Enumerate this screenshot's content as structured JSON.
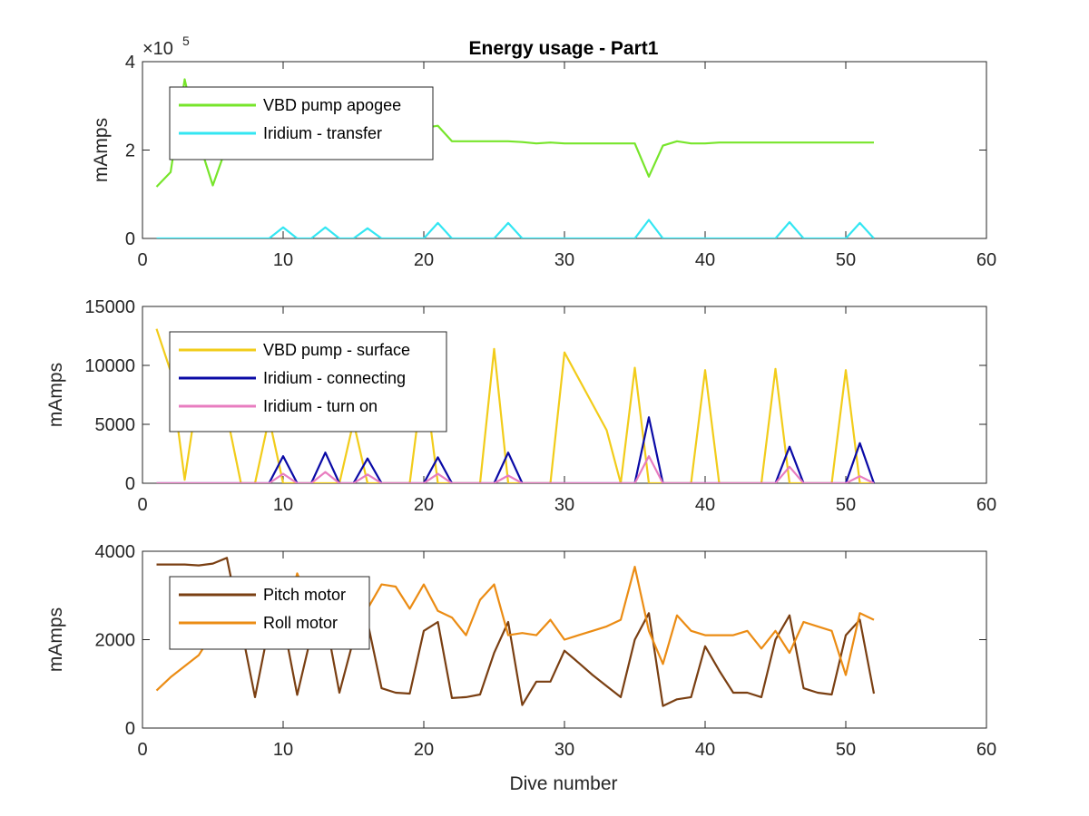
{
  "title": "Energy usage - Part1",
  "x_label": "Dive number",
  "chart_data": [
    {
      "type": "line",
      "title": "Energy usage - Part1",
      "xlabel": "",
      "ylabel": "mAmps",
      "xlim": [
        0,
        60
      ],
      "ylim": [
        0,
        4
      ],
      "y_multiplier_prefix": "×10",
      "y_multiplier_exp": "5",
      "xticks": [
        "0",
        "10",
        "20",
        "30",
        "40",
        "50",
        "60"
      ],
      "yticks": [
        "0",
        "2",
        "4"
      ],
      "legend_location": "top-left",
      "grid": false,
      "series": [
        {
          "name": "VBD pump apogee",
          "color": "#77E52B",
          "x": [
            1,
            2,
            3,
            4,
            5,
            6,
            7,
            8,
            9,
            10,
            11,
            12,
            13,
            14,
            15,
            16,
            17,
            18,
            19,
            20,
            21,
            22,
            23,
            24,
            25,
            26,
            27,
            28,
            29,
            30,
            31,
            32,
            33,
            34,
            35,
            36,
            37,
            38,
            39,
            40,
            41,
            42,
            43,
            44,
            45,
            46,
            47,
            48,
            49,
            50,
            51,
            52
          ],
          "y": [
            1.17,
            1.5,
            3.6,
            2.2,
            1.2,
            2.1,
            2.3,
            2.3,
            2.35,
            2.35,
            2.35,
            2.35,
            2.35,
            2.35,
            2.35,
            2.35,
            2.35,
            2.4,
            2.45,
            2.5,
            2.55,
            2.2,
            2.2,
            2.2,
            2.2,
            2.2,
            2.18,
            2.15,
            2.17,
            2.15,
            2.15,
            2.15,
            2.15,
            2.15,
            2.15,
            1.4,
            2.1,
            2.2,
            2.15,
            2.15,
            2.17,
            2.17,
            2.17,
            2.17,
            2.17,
            2.17,
            2.17,
            2.17,
            2.17,
            2.17,
            2.17,
            2.17
          ]
        },
        {
          "name": "Iridium - transfer",
          "color": "#33E6F2",
          "x": [
            1,
            2,
            3,
            4,
            5,
            6,
            7,
            8,
            9,
            10,
            11,
            12,
            13,
            14,
            15,
            16,
            17,
            18,
            19,
            20,
            21,
            22,
            23,
            24,
            25,
            26,
            27,
            28,
            29,
            30,
            31,
            32,
            33,
            34,
            35,
            36,
            37,
            38,
            39,
            40,
            41,
            42,
            43,
            44,
            45,
            46,
            47,
            48,
            49,
            50,
            51,
            52
          ],
          "y": [
            0,
            0,
            0,
            0,
            0,
            0,
            0,
            0,
            0,
            0.25,
            0,
            0,
            0.25,
            0,
            0,
            0.23,
            0,
            0,
            0,
            0,
            0.35,
            0,
            0,
            0,
            0,
            0.35,
            0,
            0,
            0,
            0,
            0,
            0,
            0,
            0,
            0,
            0.42,
            0,
            0,
            0,
            0,
            0,
            0,
            0,
            0,
            0,
            0.37,
            0,
            0,
            0,
            0,
            0.35,
            0
          ]
        }
      ]
    },
    {
      "type": "line",
      "title": "",
      "xlabel": "",
      "ylabel": "mAmps",
      "xlim": [
        0,
        60
      ],
      "ylim": [
        0,
        15000
      ],
      "xticks": [
        "0",
        "10",
        "20",
        "30",
        "40",
        "50",
        "60"
      ],
      "yticks": [
        "0",
        "5000",
        "10000",
        "15000"
      ],
      "legend_location": "top-left",
      "grid": false,
      "series": [
        {
          "name": "VBD pump - surface",
          "color": "#F2CC1A",
          "x": [
            1,
            2,
            3,
            4,
            5,
            6,
            7,
            8,
            9,
            10,
            11,
            12,
            13,
            14,
            15,
            16,
            17,
            18,
            19,
            20,
            21,
            22,
            23,
            24,
            25,
            26,
            27,
            28,
            29,
            30,
            31,
            32,
            33,
            34,
            35,
            36,
            37,
            38,
            39,
            40,
            41,
            42,
            43,
            44,
            45,
            46,
            47,
            48,
            49,
            50,
            51,
            52
          ],
          "y": [
            13100,
            9500,
            300,
            8200,
            6500,
            5800,
            0,
            0,
            5500,
            0,
            0,
            0,
            0,
            0,
            5200,
            0,
            0,
            0,
            0,
            9300,
            0,
            0,
            0,
            0,
            11400,
            0,
            0,
            0,
            0,
            11100,
            8900,
            6700,
            4500,
            0,
            9800,
            0,
            0,
            0,
            0,
            9600,
            0,
            0,
            0,
            0,
            9700,
            0,
            0,
            0,
            0,
            9600,
            0,
            0
          ]
        },
        {
          "name": "Iridium - connecting",
          "color": "#0A0AA6",
          "x": [
            1,
            2,
            3,
            4,
            5,
            6,
            7,
            8,
            9,
            10,
            11,
            12,
            13,
            14,
            15,
            16,
            17,
            18,
            19,
            20,
            21,
            22,
            23,
            24,
            25,
            26,
            27,
            28,
            29,
            30,
            31,
            32,
            33,
            34,
            35,
            36,
            37,
            38,
            39,
            40,
            41,
            42,
            43,
            44,
            45,
            46,
            47,
            48,
            49,
            50,
            51,
            52
          ],
          "y": [
            0,
            0,
            0,
            0,
            0,
            0,
            0,
            0,
            0,
            2300,
            0,
            0,
            2600,
            0,
            0,
            2100,
            0,
            0,
            0,
            0,
            2200,
            0,
            0,
            0,
            0,
            2600,
            0,
            0,
            0,
            0,
            0,
            0,
            0,
            0,
            0,
            5600,
            0,
            0,
            0,
            0,
            0,
            0,
            0,
            0,
            0,
            3100,
            0,
            0,
            0,
            0,
            3400,
            0
          ]
        },
        {
          "name": "Iridium - turn on",
          "color": "#E87DC0",
          "x": [
            1,
            2,
            3,
            4,
            5,
            6,
            7,
            8,
            9,
            10,
            11,
            12,
            13,
            14,
            15,
            16,
            17,
            18,
            19,
            20,
            21,
            22,
            23,
            24,
            25,
            26,
            27,
            28,
            29,
            30,
            31,
            32,
            33,
            34,
            35,
            36,
            37,
            38,
            39,
            40,
            41,
            42,
            43,
            44,
            45,
            46,
            47,
            48,
            49,
            50,
            51,
            52
          ],
          "y": [
            0,
            0,
            0,
            0,
            0,
            0,
            0,
            0,
            0,
            800,
            0,
            0,
            950,
            0,
            0,
            750,
            0,
            0,
            0,
            0,
            800,
            0,
            0,
            0,
            0,
            650,
            0,
            0,
            0,
            0,
            0,
            0,
            0,
            0,
            0,
            2300,
            0,
            0,
            0,
            0,
            0,
            0,
            0,
            0,
            0,
            1400,
            0,
            0,
            0,
            0,
            600,
            0
          ]
        }
      ]
    },
    {
      "type": "line",
      "title": "",
      "xlabel": "Dive number",
      "ylabel": "mAmps",
      "xlim": [
        0,
        60
      ],
      "ylim": [
        0,
        4000
      ],
      "xticks": [
        "0",
        "10",
        "20",
        "30",
        "40",
        "50",
        "60"
      ],
      "yticks": [
        "0",
        "2000",
        "4000"
      ],
      "legend_location": "top-left",
      "grid": false,
      "series": [
        {
          "name": "Pitch motor",
          "color": "#7A3F12",
          "x": [
            1,
            2,
            3,
            4,
            5,
            6,
            7,
            8,
            9,
            10,
            11,
            12,
            13,
            14,
            15,
            16,
            17,
            18,
            19,
            20,
            21,
            22,
            23,
            24,
            25,
            26,
            27,
            28,
            29,
            30,
            31,
            32,
            33,
            34,
            35,
            36,
            37,
            38,
            39,
            40,
            41,
            42,
            43,
            44,
            45,
            46,
            47,
            48,
            49,
            50,
            51,
            52
          ],
          "y": [
            3700,
            3700,
            3700,
            3680,
            3720,
            3850,
            2300,
            700,
            2300,
            2400,
            750,
            2100,
            2500,
            800,
            2000,
            2400,
            900,
            800,
            780,
            2200,
            2400,
            680,
            700,
            760,
            1700,
            2400,
            520,
            1050,
            1050,
            1750,
            1480,
            1200,
            950,
            700,
            2000,
            2600,
            500,
            650,
            700,
            1850,
            1300,
            800,
            800,
            700,
            2000,
            2550,
            900,
            800,
            760,
            2100,
            2450,
            780
          ]
        },
        {
          "name": "Roll motor",
          "color": "#EB8C14",
          "x": [
            1,
            2,
            3,
            4,
            5,
            6,
            7,
            8,
            9,
            10,
            11,
            12,
            13,
            14,
            15,
            16,
            17,
            18,
            19,
            20,
            21,
            22,
            23,
            24,
            25,
            26,
            27,
            28,
            29,
            30,
            31,
            32,
            33,
            34,
            35,
            36,
            37,
            38,
            39,
            40,
            41,
            42,
            43,
            44,
            45,
            46,
            47,
            48,
            49,
            50,
            51,
            52
          ],
          "y": [
            850,
            1150,
            1400,
            1650,
            2150,
            2800,
            2800,
            2600,
            2300,
            2300,
            3500,
            2700,
            2200,
            2300,
            2500,
            2700,
            3250,
            3200,
            2700,
            3250,
            2650,
            2500,
            2100,
            2900,
            3250,
            2100,
            2150,
            2100,
            2450,
            2000,
            2100,
            2200,
            2300,
            2450,
            3650,
            2200,
            1450,
            2550,
            2200,
            2100,
            2100,
            2100,
            2200,
            1800,
            2200,
            1700,
            2400,
            2300,
            2200,
            1200,
            2600,
            2450
          ]
        }
      ]
    }
  ]
}
